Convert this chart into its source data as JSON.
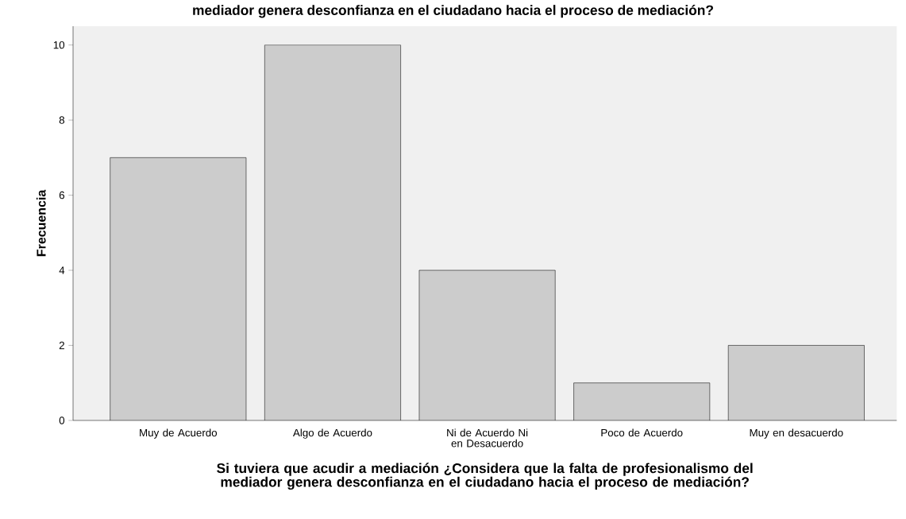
{
  "chart_data": {
    "type": "bar",
    "title": "mediador genera desconfianza en el ciudadano hacia el proceso de mediación?",
    "xlabel": "Si tuviera que acudir a mediación ¿Considera que la falta de profesionalismo del mediador genera desconfianza en el ciudadano hacia el proceso de mediación?",
    "ylabel": "Frecuencia",
    "categories": [
      "Muy de Acuerdo",
      "Algo de Acuerdo",
      "Ni de Acuerdo Ni en Desacuerdo",
      "Poco de Acuerdo",
      "Muy en desacuerdo"
    ],
    "values": [
      7,
      10,
      4,
      1,
      2
    ],
    "color": "#cccccc",
    "ylim": [
      0,
      10.5
    ],
    "yticks": [
      0,
      2,
      4,
      6,
      8,
      10
    ],
    "grid": false
  }
}
